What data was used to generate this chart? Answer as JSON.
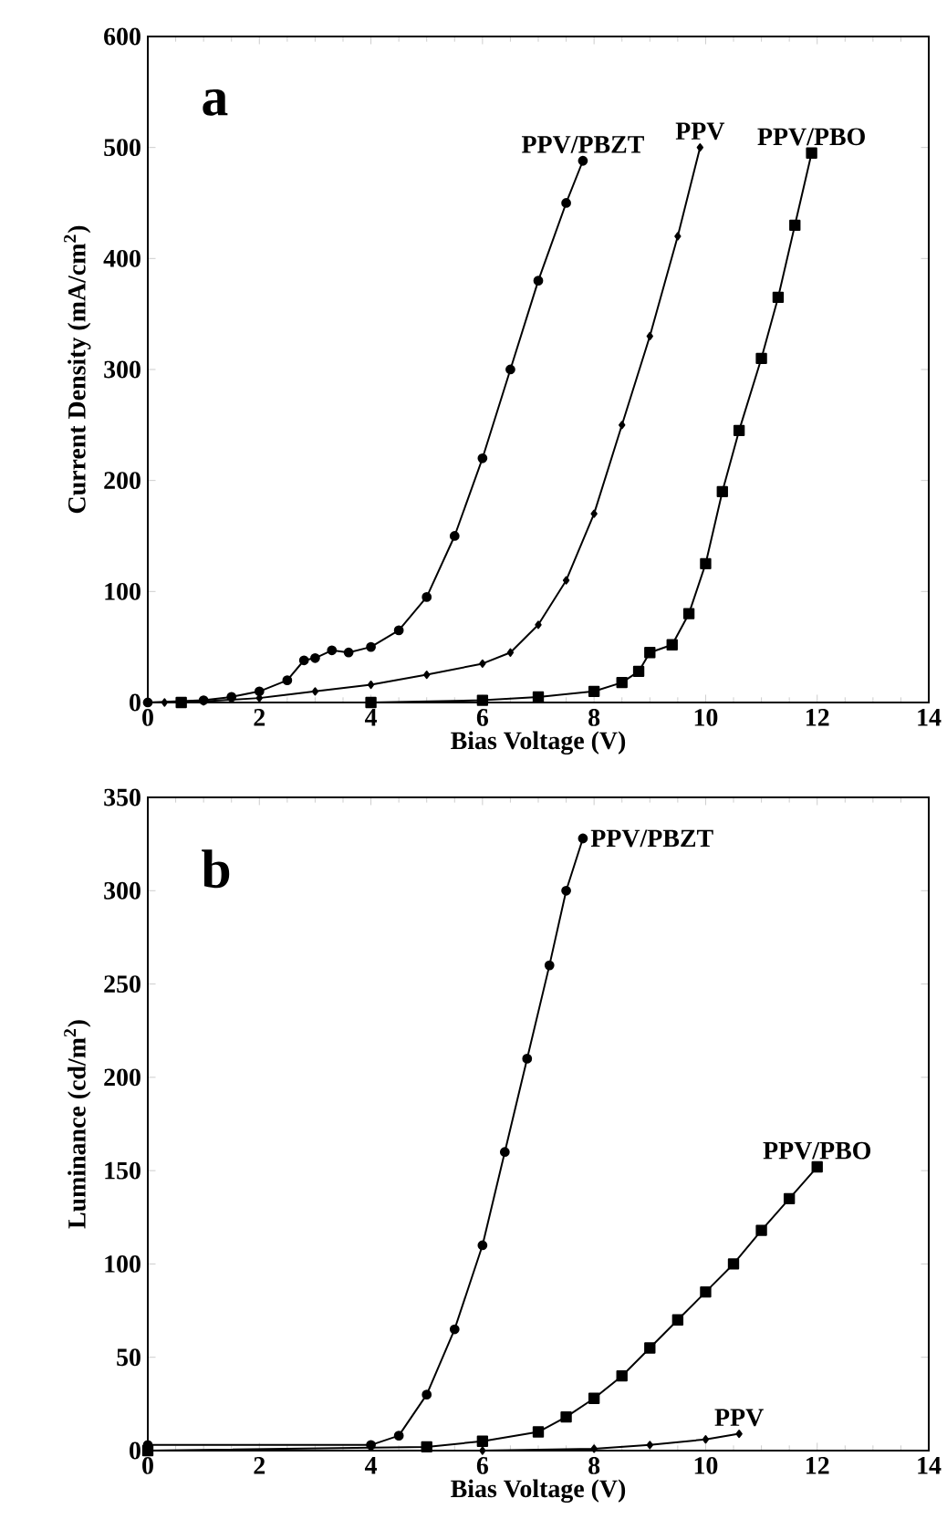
{
  "chart_data": [
    {
      "type": "line",
      "title": "a",
      "xlabel": "Bias Voltage (V)",
      "ylabel": "Current Density (mA/cm$^{2}$)",
      "xlim": [
        0,
        14
      ],
      "ylim": [
        0,
        600
      ],
      "xticks": [
        0,
        2,
        4,
        6,
        8,
        10,
        12,
        14
      ],
      "yticks": [
        0,
        100,
        200,
        300,
        400,
        500,
        600
      ],
      "grid": false,
      "line_style": "solid",
      "series": [
        {
          "name": "PPV/PBZT",
          "color": "#000000",
          "marker": "circle",
          "x": [
            0,
            1,
            1.5,
            2,
            2.5,
            2.8,
            3,
            3.3,
            3.6,
            4,
            4.5,
            5,
            5.5,
            6,
            6.5,
            7,
            7.5,
            7.8
          ],
          "values": [
            0,
            2,
            5,
            10,
            20,
            38,
            40,
            47,
            45,
            50,
            65,
            95,
            150,
            220,
            300,
            380,
            450,
            488
          ]
        },
        {
          "name": "PPV",
          "color": "#000000",
          "marker": "diamond",
          "x": [
            0.3,
            1,
            2,
            3,
            4,
            5,
            6,
            6.5,
            7,
            7.5,
            8,
            8.5,
            9,
            9.5,
            9.9
          ],
          "values": [
            0,
            1,
            4,
            10,
            16,
            25,
            35,
            45,
            70,
            110,
            170,
            250,
            330,
            420,
            500
          ]
        },
        {
          "name": "PPV/PBO",
          "color": "#000000",
          "marker": "square",
          "x": [
            0.6,
            4,
            6,
            7,
            8,
            8.5,
            8.8,
            9,
            9.4,
            9.7,
            10,
            10.3,
            10.6,
            11,
            11.3,
            11.6,
            11.9
          ],
          "values": [
            0,
            0,
            2,
            5,
            10,
            18,
            28,
            45,
            52,
            80,
            125,
            190,
            245,
            310,
            365,
            430,
            495
          ]
        }
      ]
    },
    {
      "type": "line",
      "title": "b",
      "xlabel": "Bias Voltage (V)",
      "ylabel": "Luminance (cd/m$^{2}$)",
      "xlim": [
        0,
        14
      ],
      "ylim": [
        0,
        350
      ],
      "xticks": [
        0,
        2,
        4,
        6,
        8,
        10,
        12,
        14
      ],
      "yticks": [
        0,
        50,
        100,
        150,
        200,
        250,
        300,
        350
      ],
      "grid": false,
      "line_style": "solid",
      "series": [
        {
          "name": "PPV/PBZT",
          "color": "#000000",
          "marker": "circle",
          "x": [
            0,
            4,
            4.5,
            5,
            5.5,
            6,
            6.4,
            6.8,
            7.2,
            7.5,
            7.8
          ],
          "values": [
            3,
            3,
            8,
            30,
            65,
            110,
            160,
            210,
            260,
            300,
            328
          ]
        },
        {
          "name": "PPV/PBO",
          "color": "#000000",
          "marker": "square",
          "x": [
            0,
            5,
            6,
            7,
            7.5,
            8,
            8.5,
            9,
            9.5,
            10,
            10.5,
            11,
            11.5,
            12
          ],
          "values": [
            0,
            2,
            5,
            10,
            18,
            28,
            40,
            55,
            70,
            85,
            100,
            118,
            135,
            152
          ]
        },
        {
          "name": "PPV",
          "color": "#000000",
          "marker": "diamond",
          "x": [
            0,
            6,
            8,
            9,
            10,
            10.6
          ],
          "values": [
            0,
            0,
            1,
            3,
            6,
            9
          ]
        }
      ]
    }
  ]
}
